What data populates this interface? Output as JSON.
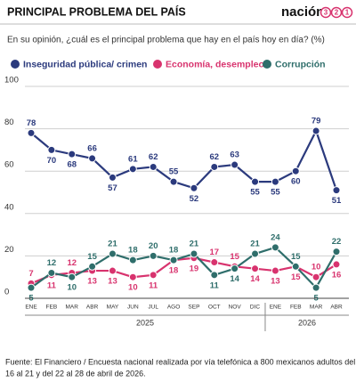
{
  "header": {
    "title": "PRINCIPAL PROBLEMA DEL PAÍS",
    "logo_name": "nación",
    "logo_digits": [
      "3",
      "2",
      "1"
    ]
  },
  "chart_data": {
    "type": "line",
    "subtitle": "En su opinión, ¿cuál es el principal problema que hay en el país hoy en día? (%)",
    "categories": [
      "ENE",
      "FEB",
      "MAR",
      "ABR",
      "MAY",
      "JUN",
      "JUL",
      "AGO",
      "SEP",
      "OCT",
      "NOV",
      "DIC",
      "ENE",
      "FEB",
      "MAR",
      "ABR"
    ],
    "years": [
      "2025",
      "2026"
    ],
    "series": [
      {
        "name": "Inseguridad pública/ crimen",
        "color": "#2b3a7d",
        "values": [
          78,
          70,
          68,
          66,
          57,
          61,
          62,
          55,
          52,
          62,
          63,
          55,
          55,
          60,
          79,
          51
        ]
      },
      {
        "name": "Economía, desempleo",
        "color": "#d8336e",
        "values": [
          7,
          11,
          12,
          13,
          13,
          10,
          11,
          18,
          19,
          17,
          15,
          14,
          13,
          15,
          10,
          16
        ]
      },
      {
        "name": "Corrupción",
        "color": "#2f6e6b",
        "values": [
          5,
          12,
          10,
          15,
          21,
          18,
          20,
          18,
          21,
          11,
          14,
          21,
          24,
          15,
          5,
          22
        ]
      }
    ],
    "ylim": [
      0,
      100
    ],
    "yticks": [
      0,
      20,
      40,
      60,
      80,
      100
    ],
    "grid": true
  },
  "footer": {
    "source": "Fuente: El Financiero /  Encuesta nacional realizada por vía telefónica a 800 mexicanos adultos del",
    "source2": "16 al 21  y del 22 al 28 de abril de 2026."
  }
}
